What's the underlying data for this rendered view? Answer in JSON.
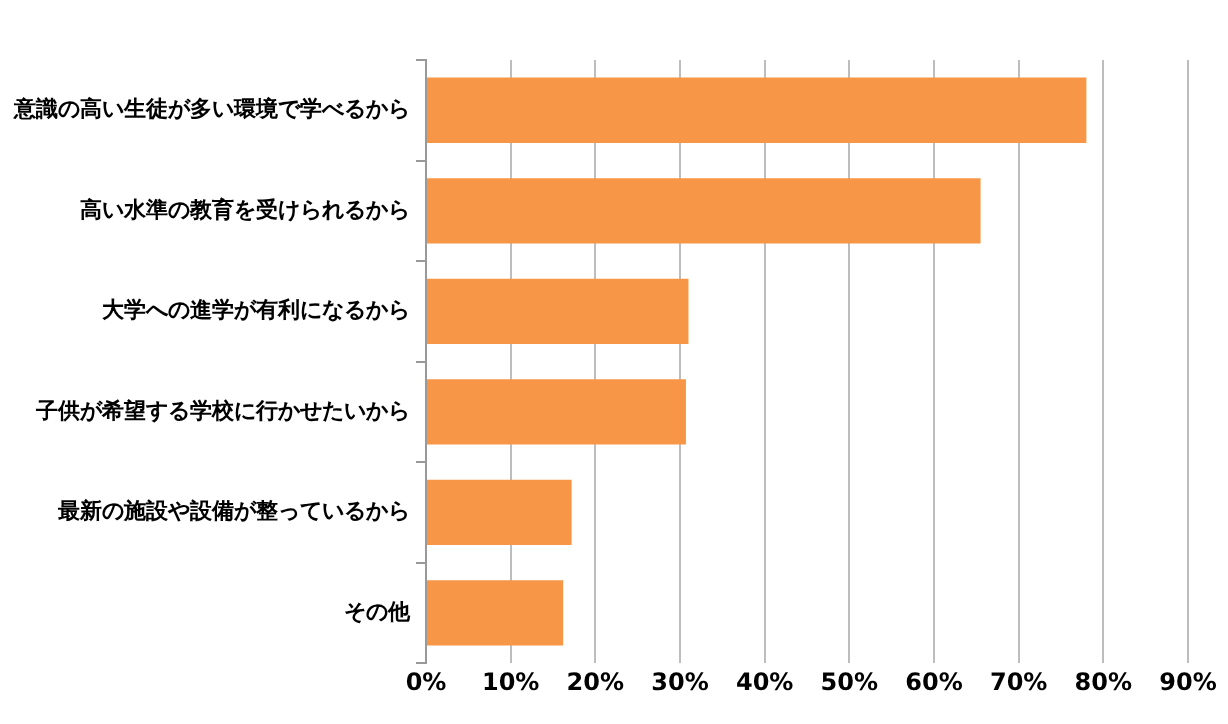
{
  "chart_data": {
    "type": "bar",
    "orientation": "horizontal",
    "categories": [
      "意識の高い生徒が多い環境で学べるから",
      "高い水準の教育を受けられるから",
      "大学への進学が有利になるから",
      "子供が希望する学校に行かせたいから",
      "最新の施設や設備が整っているから",
      "その他"
    ],
    "values": [
      78,
      65.5,
      31,
      30.7,
      17.2,
      16.2
    ],
    "color": "#f79646",
    "xlim": [
      0,
      90
    ],
    "xticks": [
      {
        "value": 0,
        "label": "0%"
      },
      {
        "value": 10,
        "label": "10%"
      },
      {
        "value": 20,
        "label": "20%"
      },
      {
        "value": 30,
        "label": "30%"
      },
      {
        "value": 40,
        "label": "40%"
      },
      {
        "value": 50,
        "label": "50%"
      },
      {
        "value": 60,
        "label": "60%"
      },
      {
        "value": 70,
        "label": "70%"
      },
      {
        "value": 80,
        "label": "80%"
      },
      {
        "value": 90,
        "label": "90%"
      }
    ],
    "grid": "x",
    "legend": false
  }
}
